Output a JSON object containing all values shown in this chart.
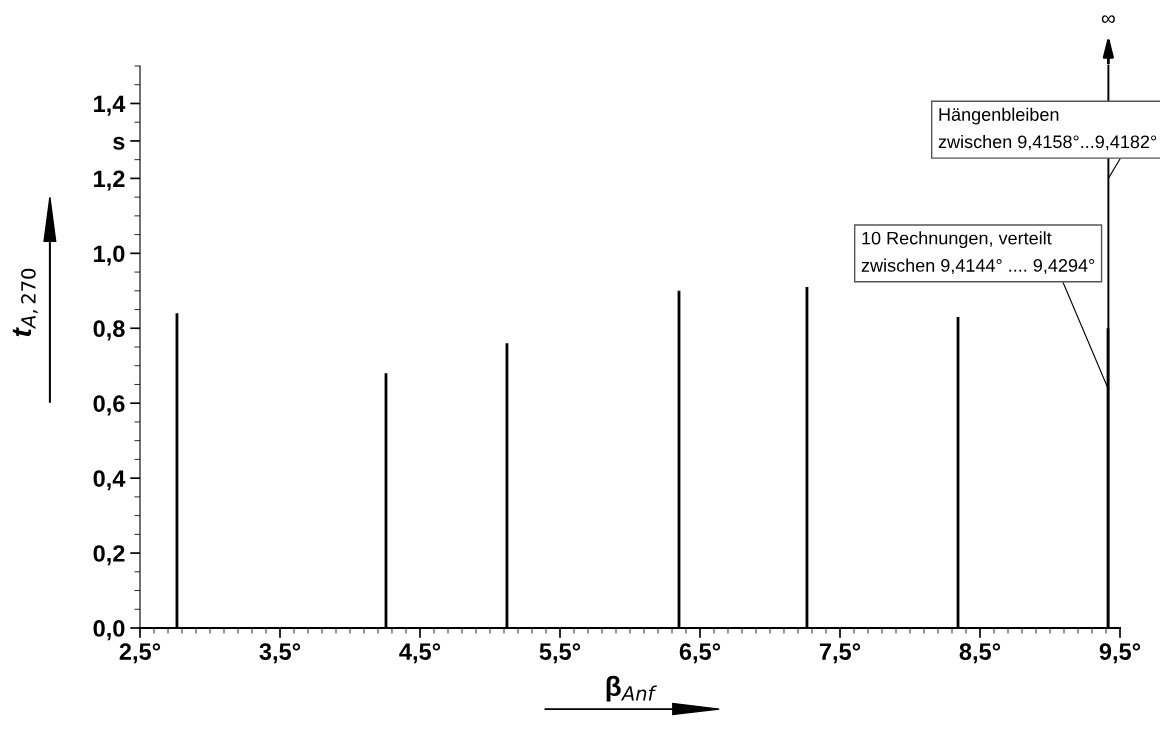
{
  "chart_data": {
    "type": "bar",
    "xlabel": "β$_{Anf}$",
    "ylabel": "t$_{A,270}$",
    "x": [
      2.764,
      4.257,
      5.121,
      6.35,
      7.264,
      8.343,
      9.4144
    ],
    "series": [
      {
        "color": "#000000",
        "values": [
          0.84,
          0.68,
          0.76,
          0.9,
          0.91,
          0.83,
          0.8
        ]
      }
    ],
    "xlim": [
      2.5,
      9.5
    ],
    "xticks": [
      {
        "value": 2.5,
        "label": "2,5°"
      },
      {
        "value": 3.5,
        "label": "3,5°"
      },
      {
        "value": 4.5,
        "label": "4,5°"
      },
      {
        "value": 5.5,
        "label": "5,5°"
      },
      {
        "value": 6.5,
        "label": "6,5°"
      },
      {
        "value": 7.5,
        "label": "7,5°"
      },
      {
        "value": 8.5,
        "label": "8,5°"
      },
      {
        "value": 9.5,
        "label": "9,5°"
      }
    ],
    "ylim": [
      0,
      1.5
    ],
    "yticks": [
      {
        "value": 0,
        "label": "0,0"
      },
      {
        "value": 0.2,
        "label": "0,2"
      },
      {
        "value": 0.4,
        "label": "0,4"
      },
      {
        "value": 0.6,
        "label": "0,6"
      },
      {
        "value": 0.8,
        "label": "0,8"
      },
      {
        "value": 1.0,
        "label": "1,0"
      },
      {
        "value": 1.2,
        "label": "1,2"
      },
      {
        "value": 1.3,
        "label": "s"
      },
      {
        "value": 1.4,
        "label": "1,4"
      }
    ],
    "grid": false,
    "ref_lines": [
      {
        "axis": "x",
        "value": 9.417,
        "label": "∞"
      }
    ],
    "annotations": [
      {
        "text": "Hängenbleiben\nzwischen 9,4158°...9,4182°",
        "x": 9.417,
        "y": 1.2
      },
      {
        "text": "10 Rechnungen, verteilt\nzwischen 9,4144° .... 9,4294°",
        "x": 9.414,
        "y": 0.64
      }
    ]
  }
}
